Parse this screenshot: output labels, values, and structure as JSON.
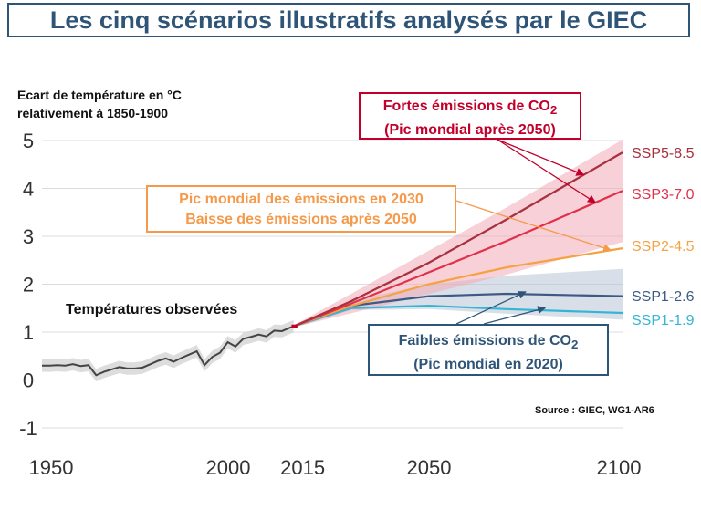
{
  "title": "Les cinq scénarios illustratifs analysés par le GIEC",
  "source": "Source : GIEC, WG1-AR6",
  "observed_label": "Températures observées",
  "annotations": {
    "high": {
      "line1_prefix": "Fortes émissions de CO",
      "line1_sub": "2",
      "line2": "(Pic mondial après 2050)",
      "color": "#c0002a"
    },
    "mid": {
      "line1": "Pic mondial des émissions en 2030",
      "line2": "Baisse des émissions après 2050",
      "color": "#f59a4a"
    },
    "low": {
      "line1_prefix": "Faibles émissions de CO",
      "line1_sub": "2",
      "line2": "(Pic mondial en 2020)",
      "color": "#2e5577"
    }
  },
  "chart_data": {
    "type": "line",
    "ylabel": "Ecart de température en °C relativement à 1850-1900",
    "ylabel_lines": [
      "Ecart de température en °C",
      "relativement à 1850-1900"
    ],
    "xlabel": "",
    "xlim": [
      1950,
      2100
    ],
    "ylim": [
      -1,
      5
    ],
    "x_ticks": [
      1950,
      2000,
      2015,
      2050,
      2100
    ],
    "y_ticks": [
      5,
      4,
      3,
      2,
      1,
      0,
      -1
    ],
    "grid": true,
    "observed": {
      "name": "Températures observées",
      "color": "#444444",
      "x": [
        1950,
        1952,
        1954,
        1956,
        1958,
        1960,
        1962,
        1964,
        1966,
        1968,
        1970,
        1972,
        1974,
        1976,
        1978,
        1980,
        1982,
        1984,
        1986,
        1988,
        1990,
        1992,
        1994,
        1996,
        1998,
        2000,
        2002,
        2004,
        2006,
        2008,
        2010,
        2012,
        2014,
        2015
      ],
      "y": [
        0.3,
        0.3,
        0.31,
        0.3,
        0.33,
        0.29,
        0.31,
        0.1,
        0.17,
        0.22,
        0.27,
        0.24,
        0.24,
        0.26,
        0.33,
        0.4,
        0.45,
        0.38,
        0.46,
        0.53,
        0.6,
        0.31,
        0.48,
        0.57,
        0.79,
        0.7,
        0.86,
        0.9,
        0.95,
        0.91,
        1.03,
        1.02,
        1.09,
        1.12
      ]
    },
    "series": [
      {
        "name": "SSP5-8.5",
        "color": "#a8303f",
        "x": [
          2015,
          2030,
          2050,
          2070,
          2100
        ],
        "y": [
          1.12,
          1.65,
          2.45,
          3.35,
          4.75
        ]
      },
      {
        "name": "SSP3-7.0",
        "color": "#e0304a",
        "x": [
          2015,
          2030,
          2050,
          2070,
          2100
        ],
        "y": [
          1.12,
          1.6,
          2.25,
          2.9,
          3.95
        ]
      },
      {
        "name": "SSP2-4.5",
        "color": "#f5a243",
        "x": [
          2015,
          2030,
          2050,
          2070,
          2100
        ],
        "y": [
          1.12,
          1.55,
          2.0,
          2.35,
          2.75
        ]
      },
      {
        "name": "SSP1-2.6",
        "color": "#3d5a85",
        "x": [
          2015,
          2030,
          2050,
          2070,
          2100
        ],
        "y": [
          1.12,
          1.55,
          1.75,
          1.8,
          1.75
        ]
      },
      {
        "name": "SSP1-1.9",
        "color": "#35b5d5",
        "x": [
          2015,
          2030,
          2050,
          2070,
          2100
        ],
        "y": [
          1.12,
          1.5,
          1.55,
          1.48,
          1.4
        ]
      }
    ]
  }
}
